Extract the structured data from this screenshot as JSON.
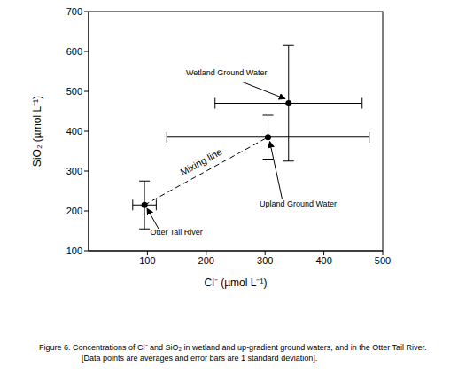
{
  "chart_data": {
    "type": "scatter",
    "x_label": "Cl⁻ (µmol L⁻¹)",
    "y_label": "SiO₂ (µmol L⁻¹)",
    "caption": [
      "Figure 6.  Concentrations of Cl⁻ and SiO₂ in wetland and up-gradient ground waters, and in the Otter Tail River.",
      "[Data points are averages and error bars are 1 standard deviation]."
    ],
    "xlim": [
      0,
      500
    ],
    "xticks": [
      100,
      200,
      300,
      400,
      500
    ],
    "ylim": [
      100,
      700
    ],
    "yticks": [
      100,
      200,
      300,
      400,
      500,
      600,
      700
    ],
    "grid": false,
    "color": "#000000",
    "marker": "circle",
    "points": [
      {
        "name": "Wetland Ground Water",
        "x": 340,
        "y": 470,
        "x_error": 125,
        "y_error": 145
      },
      {
        "name": "Upland Ground Water",
        "x": 305,
        "y": 385,
        "x_error": 172,
        "y_error": 55
      },
      {
        "name": "Otter Tail River",
        "x": 95,
        "y": 215,
        "x_error": 20,
        "y_error": 60
      }
    ],
    "mixing_line": {
      "label": "Mixing line",
      "from": "Otter Tail River",
      "to": "Upland Ground Water",
      "line_style": "dashed"
    }
  }
}
